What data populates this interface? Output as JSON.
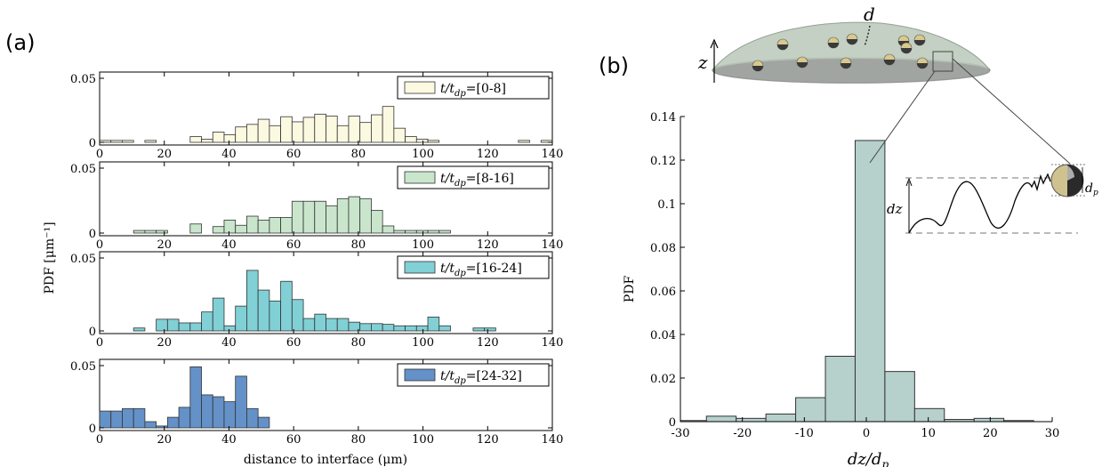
{
  "panel_labels": {
    "a": "(a)",
    "b": "(b)"
  },
  "chart_data": [
    {
      "type": "bar",
      "panel": "(a)",
      "subplots": 4,
      "bin_width": 3.5,
      "xlim": [
        0,
        140
      ],
      "xticks": [
        "0",
        "20",
        "40",
        "60",
        "80",
        "100",
        "120",
        "140"
      ],
      "ylim": [
        0,
        0.05
      ],
      "yticks": [
        "0",
        "0.05"
      ],
      "xlabel": "distance to interface (μm)",
      "ylabel": "PDF [μm⁻¹]",
      "series": [
        {
          "name": "t/t_dp=[0-8]",
          "legend_prefix": "t/t",
          "legend_sub": "dp",
          "legend_suffix": "=[0-8]",
          "color": "#fcf9e1",
          "bin_starts": [
            0,
            3.5,
            7,
            14,
            28,
            31.5,
            35,
            38.5,
            42,
            45.5,
            49,
            52.5,
            56,
            59.5,
            63,
            66.5,
            70,
            73.5,
            77,
            80.5,
            84,
            87.5,
            91,
            94.5,
            98,
            101.5,
            129.5,
            136.5
          ],
          "values": [
            0.0015,
            0.0015,
            0.0015,
            0.0015,
            0.0045,
            0.0025,
            0.008,
            0.006,
            0.012,
            0.014,
            0.018,
            0.013,
            0.02,
            0.016,
            0.0195,
            0.022,
            0.0205,
            0.013,
            0.0205,
            0.0155,
            0.0215,
            0.028,
            0.011,
            0.0045,
            0.0025,
            0.0015,
            0.0015,
            0.0015
          ]
        },
        {
          "name": "t/t_dp=[8-16]",
          "legend_prefix": "t/t",
          "legend_sub": "dp",
          "legend_suffix": "=[8-16]",
          "color": "#c9e6cc",
          "bin_starts": [
            10.5,
            14,
            17.5,
            28,
            35,
            38.5,
            42,
            45.5,
            49,
            52.5,
            56,
            59.5,
            63,
            66.5,
            70,
            73.5,
            77,
            80.5,
            84,
            87.5,
            91,
            94.5,
            98,
            101.5,
            105
          ],
          "values": [
            0.002,
            0.002,
            0.002,
            0.007,
            0.005,
            0.01,
            0.006,
            0.013,
            0.01,
            0.012,
            0.012,
            0.0245,
            0.0245,
            0.0245,
            0.021,
            0.0265,
            0.028,
            0.0265,
            0.0175,
            0.0055,
            0.002,
            0.002,
            0.002,
            0.002,
            0.002
          ]
        },
        {
          "name": "t/t_dp=[16-24]",
          "legend_prefix": "t/t",
          "legend_sub": "dp",
          "legend_suffix": "=[16-24]",
          "color": "#80d0d6",
          "bin_starts": [
            10.5,
            17.5,
            21,
            24.5,
            28,
            31.5,
            35,
            38.5,
            42,
            45.5,
            49,
            52.5,
            56,
            59.5,
            63,
            66.5,
            70,
            73.5,
            77,
            80.5,
            84,
            87.5,
            91,
            94.5,
            98,
            101.5,
            105,
            115.5,
            119
          ],
          "values": [
            0.002,
            0.008,
            0.008,
            0.0055,
            0.0055,
            0.013,
            0.0225,
            0.0035,
            0.017,
            0.0415,
            0.028,
            0.0205,
            0.034,
            0.0215,
            0.0085,
            0.0115,
            0.0085,
            0.0085,
            0.006,
            0.005,
            0.005,
            0.0045,
            0.0035,
            0.0035,
            0.0035,
            0.0095,
            0.0035,
            0.002,
            0.002
          ]
        },
        {
          "name": "t/t_dp=[24-32]",
          "legend_prefix": "t/t",
          "legend_sub": "dp",
          "legend_suffix": "=[24-32]",
          "color": "#6491c8",
          "bin_starts": [
            0,
            3.5,
            7,
            10.5,
            14,
            17.5,
            21,
            24.5,
            28,
            31.5,
            35,
            38.5,
            42,
            45.5,
            49
          ],
          "values": [
            0.0135,
            0.0135,
            0.0155,
            0.0155,
            0.005,
            0.0015,
            0.0085,
            0.0165,
            0.049,
            0.0265,
            0.025,
            0.021,
            0.0415,
            0.0155,
            0.0085
          ]
        }
      ]
    },
    {
      "type": "bar",
      "panel": "(b)",
      "bin_width": 4.8,
      "xlim": [
        -30,
        30
      ],
      "xticks": [
        "-30",
        "-20",
        "-10",
        "0",
        "10",
        "20",
        "30"
      ],
      "ylim": [
        0,
        0.14
      ],
      "yticks": [
        "0",
        "0.02",
        "0.04",
        "0.06",
        "0.08",
        "0.1",
        "0.12",
        "0.14"
      ],
      "xlabel": "dz/dp",
      "xlabel_var": "dz/d",
      "xlabel_sub": "p",
      "ylabel": "PDF",
      "color": "#b6d0cc",
      "bin_starts": [
        -30.6,
        -25.8,
        -21,
        -16.2,
        -11.4,
        -6.6,
        -1.8,
        3,
        7.8,
        12.6,
        17.4,
        22.2
      ],
      "values": [
        0.0005,
        0.0025,
        0.0015,
        0.0035,
        0.011,
        0.03,
        0.129,
        0.023,
        0.006,
        0.001,
        0.0015,
        0.0005
      ]
    }
  ],
  "inset": {
    "z_label": "z",
    "d_label": "d",
    "dz_label": "dz",
    "dp_label": "dp",
    "dp_var": "d",
    "dp_sub": "p"
  }
}
